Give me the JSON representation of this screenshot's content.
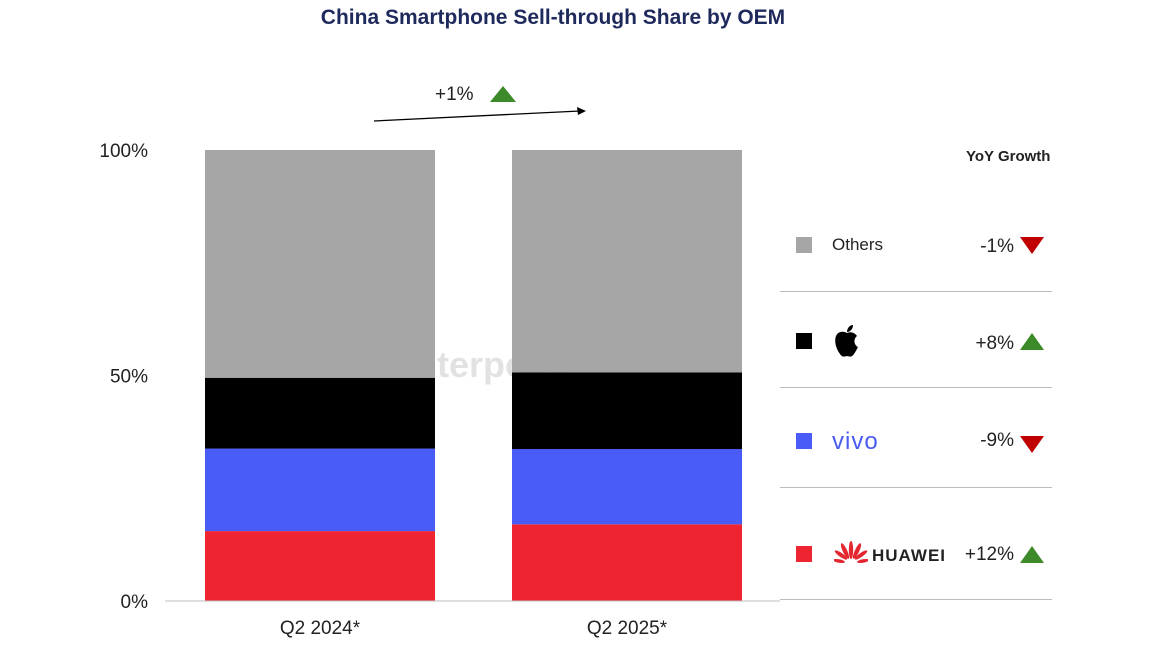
{
  "title": "China Smartphone Sell-through Share by OEM",
  "watermark": "Counterpoint",
  "overall_growth": {
    "label": "+1%",
    "direction": "up"
  },
  "legend_header": "YoY Growth",
  "colors": {
    "others": "#a6a6a6",
    "apple": "#000000",
    "vivo": "#4a5cf8",
    "huawei": "#ee2530",
    "up": "#3c8a2a",
    "down": "#c00000"
  },
  "legend": [
    {
      "key": "others",
      "label": "Others",
      "growth": "-1%",
      "direction": "down",
      "icon": "gray-square"
    },
    {
      "key": "apple",
      "label": "",
      "growth": "+8%",
      "direction": "up",
      "icon": "apple-logo-icon"
    },
    {
      "key": "vivo",
      "label": "vivo",
      "growth": "-9%",
      "direction": "down",
      "icon": "vivo-logo"
    },
    {
      "key": "huawei",
      "label": "HUAWEI",
      "growth": "+12%",
      "direction": "up",
      "icon": "huawei-logo-icon"
    }
  ],
  "chart_data": {
    "type": "bar",
    "stacked": true,
    "categories": [
      "Q2 2024*",
      "Q2 2025*"
    ],
    "series": [
      {
        "name": "HUAWEI",
        "values": [
          15.5,
          17
        ]
      },
      {
        "name": "vivo",
        "values": [
          18.3,
          16.7
        ]
      },
      {
        "name": "Apple",
        "values": [
          15.7,
          17
        ]
      },
      {
        "name": "Others",
        "values": [
          50.5,
          49.3
        ]
      }
    ],
    "yticks": [
      "0%",
      "50%",
      "100%"
    ],
    "ylim": [
      0,
      100
    ]
  }
}
